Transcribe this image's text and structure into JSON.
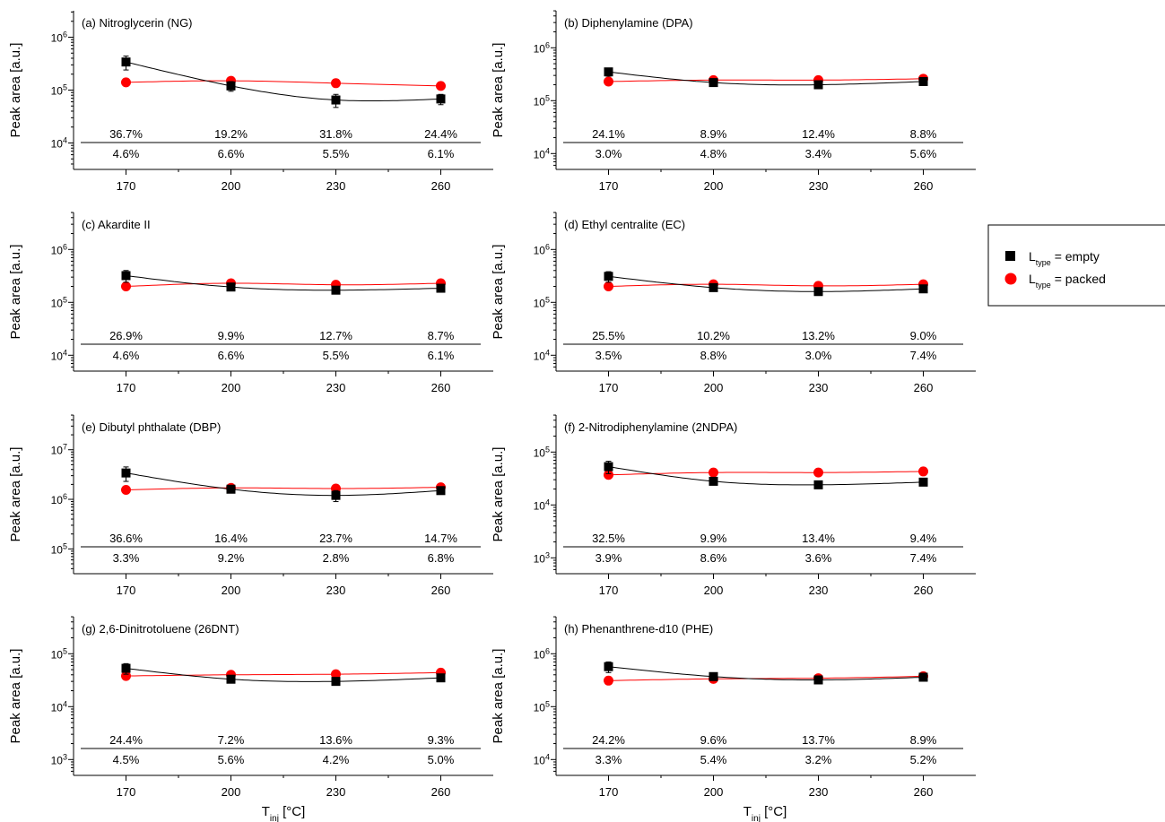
{
  "figure": {
    "y_axis_label": "Peak area [a.u.]",
    "x_axis_label_main": "T",
    "x_axis_label_sub": "inj",
    "x_axis_label_unit": " [°C]"
  },
  "legend": {
    "entries": [
      {
        "name": "empty",
        "prefix": "L",
        "sub": "type",
        "suffix": " = empty",
        "color": "#000000",
        "marker": "square"
      },
      {
        "name": "packed",
        "prefix": "L",
        "sub": "type",
        "suffix": " = packed",
        "color": "#ff0000",
        "marker": "circle"
      }
    ]
  },
  "colors": {
    "empty": "#000000",
    "packed": "#ff0000"
  },
  "chart_data": [
    {
      "type": "line",
      "title": "(a) Nitroglycerin (NG)",
      "x": [
        170,
        200,
        230,
        260
      ],
      "y_scale": "log",
      "ylim_exp": [
        3.5,
        6.5
      ],
      "ytick_exponents": [
        4,
        5,
        6
      ],
      "series": [
        {
          "name": "L_type = empty",
          "values": [
            340000,
            120000,
            65000,
            68000
          ],
          "error": [
            100000,
            25000,
            18000,
            15000
          ]
        },
        {
          "name": "L_type = packed",
          "values": [
            140000,
            150000,
            135000,
            120000
          ],
          "error": [
            0,
            0,
            0,
            0
          ]
        }
      ],
      "rsd_empty": [
        "36.7%",
        "19.2%",
        "31.8%",
        "24.4%"
      ],
      "rsd_packed": [
        "4.6%",
        "6.6%",
        "5.5%",
        "6.1%"
      ]
    },
    {
      "type": "line",
      "title": "(b) Diphenylamine (DPA)",
      "x": [
        170,
        200,
        230,
        260
      ],
      "y_scale": "log",
      "ylim_exp": [
        3.7,
        6.7
      ],
      "ytick_exponents": [
        4,
        5,
        6
      ],
      "series": [
        {
          "name": "L_type = empty",
          "values": [
            350000,
            220000,
            200000,
            230000
          ],
          "error": [
            60000,
            20000,
            20000,
            15000
          ]
        },
        {
          "name": "L_type = packed",
          "values": [
            230000,
            245000,
            245000,
            260000
          ],
          "error": [
            0,
            0,
            0,
            0
          ]
        }
      ],
      "rsd_empty": [
        "24.1%",
        "8.9%",
        "12.4%",
        "8.8%"
      ],
      "rsd_packed": [
        "3.0%",
        "4.8%",
        "3.4%",
        "5.6%"
      ]
    },
    {
      "type": "line",
      "title": "(c) Akardite II",
      "x": [
        170,
        200,
        230,
        260
      ],
      "y_scale": "log",
      "ylim_exp": [
        3.7,
        6.7
      ],
      "ytick_exponents": [
        4,
        5,
        6
      ],
      "series": [
        {
          "name": "L_type = empty",
          "values": [
            320000,
            195000,
            170000,
            185000
          ],
          "error": [
            80000,
            20000,
            20000,
            15000
          ]
        },
        {
          "name": "L_type = packed",
          "values": [
            200000,
            230000,
            215000,
            230000
          ],
          "error": [
            0,
            0,
            0,
            0
          ]
        }
      ],
      "rsd_empty": [
        "26.9%",
        "9.9%",
        "12.7%",
        "8.7%"
      ],
      "rsd_packed": [
        "4.6%",
        "6.6%",
        "5.5%",
        "6.1%"
      ]
    },
    {
      "type": "line",
      "title": "(d) Ethyl centralite (EC)",
      "x": [
        170,
        200,
        230,
        260
      ],
      "y_scale": "log",
      "ylim_exp": [
        3.7,
        6.7
      ],
      "ytick_exponents": [
        4,
        5,
        6
      ],
      "series": [
        {
          "name": "L_type = empty",
          "values": [
            310000,
            190000,
            160000,
            180000
          ],
          "error": [
            70000,
            20000,
            20000,
            15000
          ]
        },
        {
          "name": "L_type = packed",
          "values": [
            200000,
            220000,
            205000,
            220000
          ],
          "error": [
            0,
            0,
            0,
            0
          ]
        }
      ],
      "rsd_empty": [
        "25.5%",
        "10.2%",
        "13.2%",
        "9.0%"
      ],
      "rsd_packed": [
        "3.5%",
        "8.8%",
        "3.0%",
        "7.4%"
      ]
    },
    {
      "type": "line",
      "title": "(e) Dibutyl phthalate (DBP)",
      "x": [
        170,
        200,
        230,
        260
      ],
      "y_scale": "log",
      "ylim_exp": [
        4.5,
        7.7
      ],
      "ytick_exponents": [
        5,
        6,
        7
      ],
      "series": [
        {
          "name": "L_type = empty",
          "values": [
            3400000,
            1600000,
            1200000,
            1500000
          ],
          "error": [
            1100000,
            250000,
            300000,
            200000
          ]
        },
        {
          "name": "L_type = packed",
          "values": [
            1550000,
            1700000,
            1650000,
            1750000
          ],
          "error": [
            0,
            0,
            0,
            0
          ]
        }
      ],
      "rsd_empty": [
        "36.6%",
        "16.4%",
        "23.7%",
        "14.7%"
      ],
      "rsd_packed": [
        "3.3%",
        "9.2%",
        "2.8%",
        "6.8%"
      ]
    },
    {
      "type": "line",
      "title": "(f) 2-Nitrodiphenylamine (2NDPA)",
      "x": [
        170,
        200,
        230,
        260
      ],
      "y_scale": "log",
      "ylim_exp": [
        2.7,
        5.7
      ],
      "ytick_exponents": [
        3,
        4,
        5
      ],
      "series": [
        {
          "name": "L_type = empty",
          "values": [
            53000,
            28000,
            24000,
            27000
          ],
          "error": [
            14000,
            2500,
            2500,
            2500
          ]
        },
        {
          "name": "L_type = packed",
          "values": [
            37000,
            41000,
            41000,
            43000
          ],
          "error": [
            0,
            0,
            0,
            0
          ]
        }
      ],
      "rsd_empty": [
        "32.5%",
        "9.9%",
        "13.4%",
        "9.4%"
      ],
      "rsd_packed": [
        "3.9%",
        "8.6%",
        "3.6%",
        "7.4%"
      ]
    },
    {
      "type": "line",
      "title": "(g) 2,6-Dinitrotoluene (26DNT)",
      "x": [
        170,
        200,
        230,
        260
      ],
      "y_scale": "log",
      "ylim_exp": [
        2.7,
        5.7
      ],
      "ytick_exponents": [
        3,
        4,
        5
      ],
      "series": [
        {
          "name": "L_type = empty",
          "values": [
            53000,
            33000,
            30000,
            35000
          ],
          "error": [
            12000,
            2500,
            4000,
            3000
          ]
        },
        {
          "name": "L_type = packed",
          "values": [
            38000,
            40000,
            41000,
            44000
          ],
          "error": [
            0,
            0,
            0,
            0
          ]
        }
      ],
      "rsd_empty": [
        "24.4%",
        "7.2%",
        "13.6%",
        "9.3%"
      ],
      "rsd_packed": [
        "4.5%",
        "5.6%",
        "4.2%",
        "5.0%"
      ]
    },
    {
      "type": "line",
      "title": "(h) Phenanthrene-d10 (PHE)",
      "x": [
        170,
        200,
        230,
        260
      ],
      "y_scale": "log",
      "ylim_exp": [
        3.7,
        6.7
      ],
      "ytick_exponents": [
        4,
        5,
        6
      ],
      "series": [
        {
          "name": "L_type = empty",
          "values": [
            570000,
            370000,
            320000,
            360000
          ],
          "error": [
            130000,
            30000,
            40000,
            30000
          ]
        },
        {
          "name": "L_type = packed",
          "values": [
            310000,
            335000,
            345000,
            375000
          ],
          "error": [
            0,
            0,
            0,
            0
          ]
        }
      ],
      "rsd_empty": [
        "24.2%",
        "9.6%",
        "13.7%",
        "8.9%"
      ],
      "rsd_packed": [
        "3.3%",
        "5.4%",
        "3.2%",
        "5.2%"
      ]
    }
  ]
}
